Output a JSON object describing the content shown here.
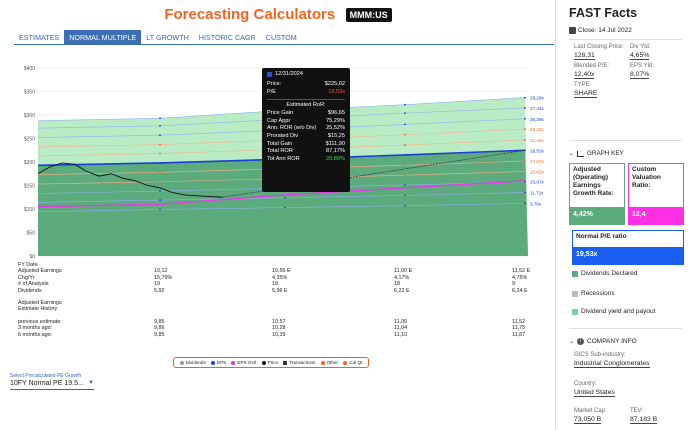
{
  "header": {
    "title": "Forecasting Calculators",
    "ticker": "MMM:US"
  },
  "tabs": [
    {
      "label": "ESTIMATES",
      "active": false
    },
    {
      "label": "NORMAL MULTIPLE",
      "active": true
    },
    {
      "label": "LT GROWTH",
      "active": false
    },
    {
      "label": "HISTORIC CAGR",
      "active": false
    },
    {
      "label": "CUSTOM",
      "active": false
    }
  ],
  "chart_data": {
    "type": "area",
    "y_ticks": [
      "$400",
      "$350",
      "$300",
      "$250",
      "$200",
      "$150",
      "$100",
      "$50",
      "$0"
    ],
    "ylim": [
      0,
      400
    ],
    "x_ticks": [
      "12/31/21",
      "12/31/22",
      "12/31/23",
      "12/31/24"
    ],
    "pe_bands": [
      {
        "label": "29,29x",
        "values": [
          293,
          310,
          322,
          337
        ],
        "color": "#1a3fd4"
      },
      {
        "label": "27,34x",
        "values": [
          277,
          291,
          304,
          315
        ],
        "color": "#1a3fd4"
      },
      {
        "label": "25,39x",
        "values": [
          257,
          268,
          280,
          292
        ],
        "color": "#1a3fd4"
      },
      {
        "label": "23,43x",
        "values": [
          237,
          247,
          258,
          270
        ],
        "color": "#f26522"
      },
      {
        "label": "21,48x",
        "values": [
          218,
          227,
          236,
          247
        ],
        "color": "#f26522"
      },
      {
        "label": "19,53x",
        "values": [
          198,
          206,
          215,
          225
        ],
        "color": "#1a3fd4"
      },
      {
        "label": "17,57x",
        "values": [
          178,
          186,
          193,
          202
        ],
        "color": "#f26522"
      },
      {
        "label": "15,62x",
        "values": [
          158,
          165,
          172,
          180
        ],
        "color": "#f26522"
      },
      {
        "label": "13,67x",
        "values": [
          138,
          145,
          151,
          158
        ],
        "color": "#1a3fd4"
      },
      {
        "label": "11,72x",
        "values": [
          119,
          124,
          129,
          135
        ],
        "color": "#1a3fd4"
      },
      {
        "label": "9,76x",
        "values": [
          99,
          103,
          107,
          112
        ],
        "color": "#1a3fd4"
      }
    ],
    "price_history": [
      [
        0,
        175
      ],
      [
        0.1,
        190
      ],
      [
        0.2,
        198
      ],
      [
        0.3,
        195
      ],
      [
        0.4,
        180
      ],
      [
        0.5,
        170
      ],
      [
        0.6,
        175
      ],
      [
        0.7,
        165
      ],
      [
        0.8,
        160
      ],
      [
        0.9,
        150
      ],
      [
        1.0,
        145
      ],
      [
        1.1,
        135
      ],
      [
        1.2,
        130
      ],
      [
        1.3,
        128
      ],
      [
        1.5,
        125
      ]
    ],
    "projected_price": [
      [
        1.5,
        125
      ],
      [
        4.0,
        225
      ]
    ],
    "dividend_line": [
      [
        0,
        105
      ],
      [
        1.0,
        110
      ],
      [
        2.0,
        130
      ],
      [
        3.0,
        145
      ],
      [
        4.0,
        160
      ]
    ]
  },
  "tooltip": {
    "date": "12/31/2024",
    "price_label": "Price:",
    "price": "$225,02",
    "pe_label": "P/E",
    "pe": "19,53x",
    "section": "Estimated RoR:",
    "rows": [
      {
        "label": "Price Gain",
        "value": "$96,65"
      },
      {
        "label": "Cap Appr",
        "value": "75,29%"
      },
      {
        "label": "Ann. ROR (w/o Div)",
        "value": "25,52%"
      },
      {
        "label": "Prorated Div",
        "value": "$15,25"
      },
      {
        "label": "Total Gain",
        "value": "$111,90"
      },
      {
        "label": "Total ROR",
        "value": "87,17%"
      }
    ],
    "tot_label": "Tot Ann ROR",
    "tot_value": "28,89%"
  },
  "table": {
    "rows": [
      {
        "label": "FY Date",
        "values": [
          "",
          "",
          "",
          ""
        ]
      },
      {
        "label": "Adjusted Earnings",
        "values": [
          "10,12",
          "10,56 E",
          "11,00 E",
          "11,52 E"
        ]
      },
      {
        "label": "Chg/Yr",
        "values": [
          "15,79%",
          "4,35%",
          "4,17%",
          "4,76%"
        ]
      },
      {
        "label": "# of Analysts",
        "values": [
          "19",
          "18",
          "18",
          "9"
        ]
      },
      {
        "label": "Dividends",
        "values": [
          "5,92",
          "5,96 E",
          "6,22 E",
          "6,24 E"
        ]
      }
    ],
    "history_title_1": "Adjusted Earnings",
    "history_title_2": "Estimate History",
    "history": [
      {
        "label": "previous estimate:",
        "values": [
          "9,85",
          "10,57",
          "11,00",
          "11,52"
        ]
      },
      {
        "label": "3 months ago:",
        "values": [
          "9,86",
          "10,28",
          "11,04",
          "11,75"
        ]
      },
      {
        "label": "6 months ago:",
        "values": [
          "9,85",
          "10,39",
          "11,10",
          "11,87"
        ]
      }
    ]
  },
  "legend": [
    {
      "label": "Dividends",
      "color": "#999999"
    },
    {
      "label": "EPS",
      "color": "#1a3fd4"
    },
    {
      "label": "EPS Ovrl",
      "color": "#d63cd6"
    },
    {
      "label": "Price",
      "color": "#111111"
    },
    {
      "label": "Transactions",
      "color": "#333333"
    },
    {
      "label": "Other",
      "color": "#f26522"
    },
    {
      "label": "Cal Qt",
      "color": "#f26522"
    }
  ],
  "select": {
    "label": "Select Precalculated PE Growth",
    "value": "10FY Normal PE 19.5..."
  },
  "fast_facts": {
    "title": "FAST Facts",
    "close_label": "Close: 14 Jul 2022",
    "items": [
      {
        "label": "Last Closing Price:",
        "value": "128,31"
      },
      {
        "label": "Div Yld:",
        "value": "4,65%"
      },
      {
        "label": "Blended P/E:",
        "value": "12,40x"
      },
      {
        "label": "EPS Yld:",
        "value": "8,07%"
      },
      {
        "label": "TYPE:",
        "value": "SHARE"
      }
    ]
  },
  "graph_key": {
    "title": "GRAPH KEY",
    "adjusted_label": "Adjusted (Operating) Earnings Growth Rate:",
    "adjusted_value": "4,42%",
    "custom_label": "Custom Valuation Ratio:",
    "custom_value": "12,4",
    "normal_label": "Normal P/E ratio",
    "normal_value": "19,53x",
    "dividends_declared": "Dividends Declared",
    "recessions": "Recessions",
    "dividend_yield": "Dividend yield and payout"
  },
  "company_info": {
    "title": "COMPANY INFO",
    "sub_industry_label": "GICS Sub-industry:",
    "sub_industry": "Industrial Conglomerates",
    "country_label": "Country:",
    "country": "United States",
    "market_cap_label": "Market Cap:",
    "market_cap": "73,050 B",
    "tev_label": "TEV:",
    "tev": "87,183 B"
  },
  "colors": {
    "accent": "#f26522",
    "tab_blue": "#3d6fb5",
    "green_fill": "#5cab7d",
    "magenta": "#ff2fe6",
    "blue": "#1a5ff2"
  }
}
